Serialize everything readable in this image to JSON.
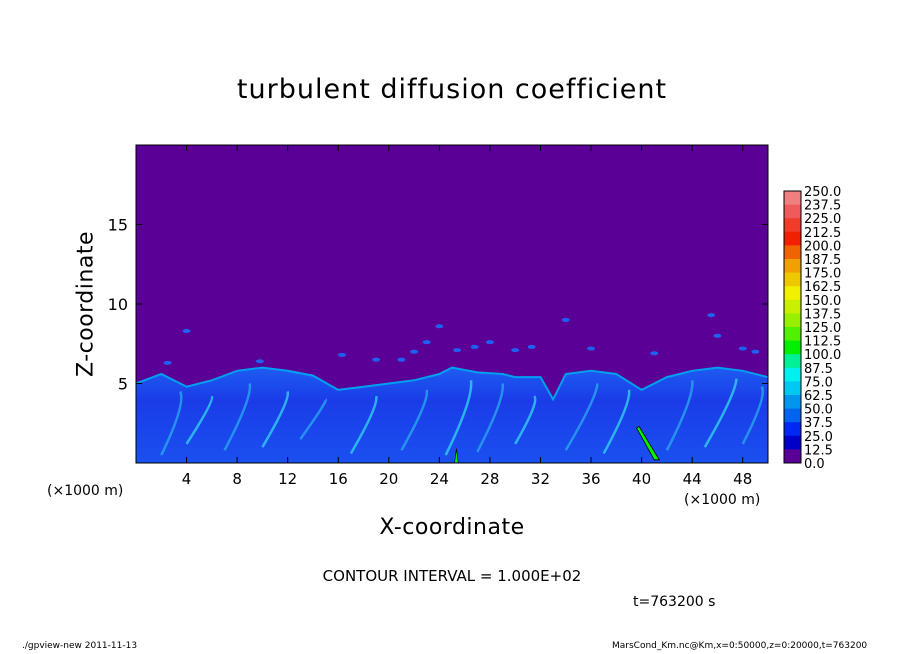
{
  "chart_data": {
    "type": "heatmap",
    "title": "turbulent diffusion coefficient",
    "xlabel": "X-coordinate",
    "ylabel": "Z-coordinate",
    "x_unit": "(×1000 m)",
    "x_ticks": [
      "4",
      "8",
      "12",
      "16",
      "20",
      "24",
      "28",
      "32",
      "36",
      "40",
      "44",
      "48"
    ],
    "y_ticks": [
      "5",
      "10",
      "15"
    ],
    "xlim": [
      0,
      50
    ],
    "ylim": [
      0,
      20
    ],
    "background_value": 0.0,
    "turbulent_layer_top_approx_km": [
      [
        0,
        5.0
      ],
      [
        2,
        5.6
      ],
      [
        4,
        4.8
      ],
      [
        6,
        5.2
      ],
      [
        8,
        5.8
      ],
      [
        10,
        6.0
      ],
      [
        12,
        5.8
      ],
      [
        14,
        5.5
      ],
      [
        16,
        4.6
      ],
      [
        18,
        4.8
      ],
      [
        20,
        5.0
      ],
      [
        22,
        5.2
      ],
      [
        24,
        5.6
      ],
      [
        25,
        6.0
      ],
      [
        27,
        5.7
      ],
      [
        29,
        5.6
      ],
      [
        30,
        5.4
      ],
      [
        32,
        5.4
      ],
      [
        33,
        4.0
      ],
      [
        34,
        5.6
      ],
      [
        36,
        5.8
      ],
      [
        38,
        5.6
      ],
      [
        40,
        4.6
      ],
      [
        42,
        5.4
      ],
      [
        44,
        5.8
      ],
      [
        46,
        6.0
      ],
      [
        48,
        5.8
      ],
      [
        50,
        5.4
      ]
    ],
    "colorbar": {
      "levels": [
        "250.0",
        "237.5",
        "225.0",
        "212.5",
        "200.0",
        "187.5",
        "175.0",
        "162.5",
        "150.0",
        "137.5",
        "125.0",
        "112.5",
        "100.0",
        "87.5",
        "75.0",
        "62.5",
        "50.0",
        "37.5",
        "25.0",
        "12.5",
        "0.0"
      ],
      "colors": [
        "#f08080",
        "#f05a5a",
        "#f03c28",
        "#f02000",
        "#f06400",
        "#f0a000",
        "#f0c800",
        "#f0f000",
        "#c8f000",
        "#96f000",
        "#50f000",
        "#00f000",
        "#00f096",
        "#00f0f0",
        "#00c8f0",
        "#0096f0",
        "#0064f0",
        "#0028f0",
        "#0000c8",
        "#5a0096"
      ]
    },
    "contour_interval": "CONTOUR INTERVAL = 1.000E+02",
    "time": "t=763200 s"
  },
  "footer": {
    "left": "./gpview-new   2011-11-13",
    "right": "MarsCond_Km.nc@Km,x=0:50000,z=0:20000,t=763200"
  }
}
